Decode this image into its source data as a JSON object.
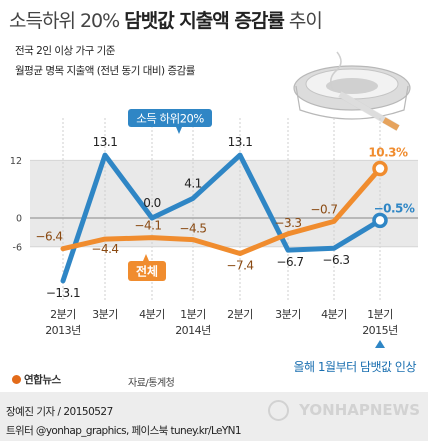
{
  "title_light": "소득하위 20%",
  "title_bold": "담뱃값 지출액 증감률",
  "title_end": "추이",
  "subtitle1": "전국 2인 이상 가구 기준",
  "subtitle2": "월평균 명목 지출액 (전년 동기 대비) 증감률",
  "note": "올해 1월부터 담뱃값 인상",
  "source": "자료/통계청",
  "logo_text": "연합뉴스",
  "credit_line1": "장예진 기자 / 20150527",
  "credit_line2": "트위터 @yonhap_graphics, 페이스북 tuney.kr/LeYN1",
  "watermark": "YONHAPNEWS",
  "chart_data": {
    "type": "line",
    "categories": [
      "2분기",
      "3분기",
      "4분기",
      "1분기",
      "2분기",
      "3분기",
      "4분기",
      "1분기"
    ],
    "year_labels": [
      "2013년",
      "",
      "",
      "2014년",
      "",
      "",
      "",
      "2015년"
    ],
    "ylim": [
      -15,
      15
    ],
    "yticks": [
      12,
      0,
      -6
    ],
    "shaded_band": [
      -6,
      12
    ],
    "series": [
      {
        "name": "소득 하위20%",
        "color": "#2f86c5",
        "values": [
          -13.1,
          13.1,
          0.0,
          4.1,
          13.1,
          -6.7,
          -6.3,
          -0.5
        ],
        "labels": [
          "−13.1",
          "13.1",
          "0.0",
          "4.1",
          "13.1",
          "−6.7",
          "−6.3",
          "−0.5%"
        ]
      },
      {
        "name": "전체",
        "color": "#f08c2e",
        "values": [
          -6.4,
          -4.4,
          -4.1,
          -4.5,
          -7.4,
          -3.3,
          -0.7,
          10.3
        ],
        "labels": [
          "−6.4",
          "−4.4",
          "−4.1",
          "−4.5",
          "−7.4",
          "−3.3",
          "−0.7",
          "10.3%"
        ]
      }
    ]
  }
}
